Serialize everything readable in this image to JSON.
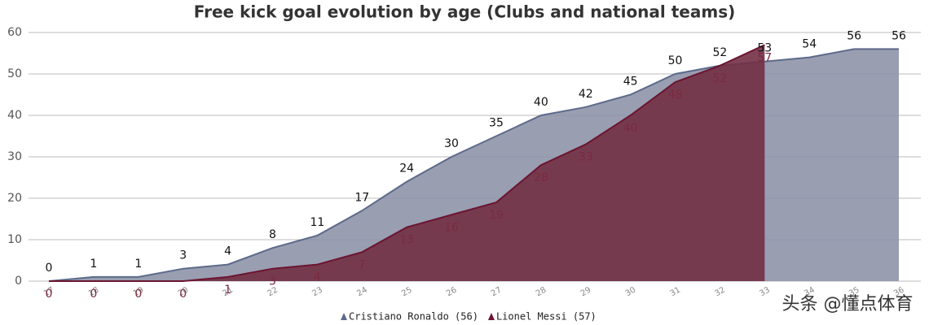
{
  "chart_data": {
    "type": "area",
    "title": "Free kick goal evolution by age (Clubs and national teams)",
    "categories": [
      "17",
      "18",
      "19",
      "20",
      "21",
      "22",
      "23",
      "24",
      "25",
      "26",
      "27",
      "28",
      "29",
      "30",
      "31",
      "32",
      "33",
      "34",
      "35",
      "36"
    ],
    "series": [
      {
        "name": "Cristiano Ronaldo (56)",
        "color": "#8e93a8",
        "line_color": "#5d6a8a",
        "label_color": "#111111",
        "values": [
          0,
          1,
          1,
          3,
          4,
          8,
          11,
          17,
          24,
          30,
          35,
          40,
          42,
          45,
          50,
          52,
          53,
          54,
          56,
          56
        ]
      },
      {
        "name": "Lionel Messi (57)",
        "color": "#722f45",
        "line_color": "#6b1530",
        "label_color": "#7a2a40",
        "values": [
          0,
          0,
          0,
          0,
          1,
          3,
          4,
          7,
          13,
          16,
          19,
          28,
          33,
          40,
          48,
          52,
          57,
          null,
          null,
          null
        ]
      }
    ],
    "ylim": [
      0,
      60
    ],
    "yticks": [
      0,
      10,
      20,
      30,
      40,
      50,
      60
    ],
    "grid": true,
    "legend": "bottom",
    "watermark": "头条 @懂点体育"
  }
}
